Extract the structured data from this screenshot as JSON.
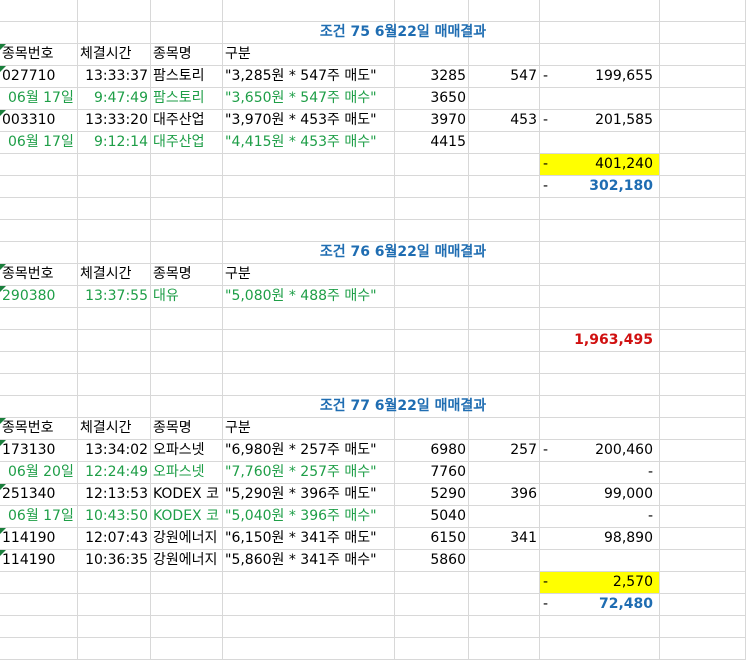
{
  "sheet": {
    "blocks": [
      {
        "title": "조건 75 6월22일 매매결과",
        "headers": [
          "종목번호",
          "체결시간",
          "종목명",
          "구분"
        ],
        "rows": [
          {
            "code": "027710",
            "time": "13:33:37",
            "name": "팜스토리",
            "desc": "\"3,285원 * 547주 매도\"",
            "price": "3285",
            "qty": "547",
            "dash": "-",
            "amount": "199,655",
            "green": false,
            "tri": true
          },
          {
            "code": "06월 17일",
            "time": "9:47:49",
            "name": "팜스토리",
            "desc": "\"3,650원 * 547주 매수\"",
            "price": "3650",
            "qty": "",
            "dash": "",
            "amount": "",
            "green": true,
            "tri": false
          },
          {
            "code": "003310",
            "time": "13:33:20",
            "name": "대주산업",
            "desc": "\"3,970원 * 453주 매도\"",
            "price": "3970",
            "qty": "453",
            "dash": "-",
            "amount": "201,585",
            "green": false,
            "tri": true
          },
          {
            "code": "06월 17일",
            "time": "9:12:14",
            "name": "대주산업",
            "desc": "\"4,415원 * 453주 매수\"",
            "price": "4415",
            "qty": "",
            "dash": "",
            "amount": "",
            "green": true,
            "tri": false
          }
        ],
        "subtotal": {
          "dash": "-",
          "value": "401,240"
        },
        "total": {
          "dash": "-",
          "value": "302,180"
        }
      },
      {
        "title": "조건 76 6월22일 매매결과",
        "headers": [
          "종목번호",
          "체결시간",
          "종목명",
          "구분"
        ],
        "rows": [
          {
            "code": "290380",
            "time": "13:37:55",
            "name": "대유",
            "desc": "\"5,080원 * 488주 매수\"",
            "price": "",
            "qty": "",
            "dash": "",
            "amount": "",
            "green": true,
            "tri": true
          }
        ],
        "total_red": "1,963,495"
      },
      {
        "title": "조건 77 6월22일 매매결과",
        "headers": [
          "종목번호",
          "체결시간",
          "종목명",
          "구분"
        ],
        "rows": [
          {
            "code": "173130",
            "time": "13:34:02",
            "name": "오파스넷",
            "desc": "\"6,980원 * 257주 매도\"",
            "price": "6980",
            "qty": "257",
            "dash": "-",
            "amount": "200,460",
            "green": false,
            "tri": true
          },
          {
            "code": "06월 20일",
            "time": "12:24:49",
            "name": "오파스넷",
            "desc": "\"7,760원 * 257주 매수\"",
            "price": "7760",
            "qty": "",
            "dash": "",
            "amount": "-",
            "green": true,
            "tri": false
          },
          {
            "code": "251340",
            "time": "12:13:53",
            "name": "KODEX 코",
            "desc": "\"5,290원 * 396주 매도\"",
            "price": "5290",
            "qty": "396",
            "dash": "",
            "amount": "99,000",
            "green": false,
            "tri": true
          },
          {
            "code": "06월 17일",
            "time": "10:43:50",
            "name": "KODEX 코",
            "desc": "\"5,040원 * 396주 매수\"",
            "price": "5040",
            "qty": "",
            "dash": "",
            "amount": "-",
            "green": true,
            "tri": false
          },
          {
            "code": "114190",
            "time": "12:07:43",
            "name": "강원에너지",
            "desc": "\"6,150원 * 341주 매도\"",
            "price": "6150",
            "qty": "341",
            "dash": "",
            "amount": "98,890",
            "green": false,
            "tri": true
          },
          {
            "code": "114190",
            "time": "10:36:35",
            "name": "강원에너지",
            "desc": "\"5,860원 * 341주 매수\"",
            "price": "5860",
            "qty": "",
            "dash": "",
            "amount": "",
            "green": false,
            "tri": true
          }
        ],
        "subtotal": {
          "dash": "-",
          "value": "2,570"
        },
        "total": {
          "dash": "-",
          "value": "72,480"
        }
      }
    ]
  },
  "colors": {
    "title_blue": "#1f6db2",
    "green_text": "#1e9e47",
    "highlight": "#ffff00",
    "red_total": "#d01010"
  }
}
